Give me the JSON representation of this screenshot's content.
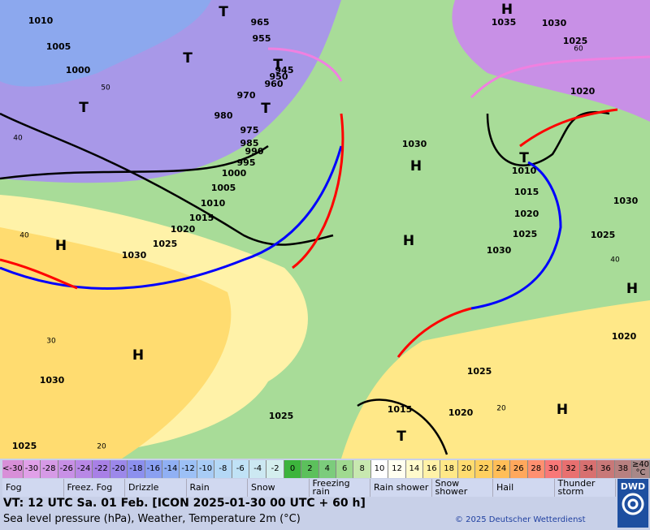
{
  "map": {
    "labels": [
      "1010",
      "1005",
      "1000",
      "965",
      "955",
      "945",
      "950",
      "960",
      "970",
      "980",
      "975",
      "985",
      "990",
      "995",
      "1000",
      "1005",
      "1010",
      "1015",
      "1020",
      "1025",
      "1030",
      "1030",
      "1035",
      "1030",
      "1025",
      "1020",
      "1010",
      "1015",
      "1020",
      "1025",
      "1030",
      "1025",
      "1030",
      "1020",
      "1025",
      "1020",
      "1015",
      "1025",
      "1030",
      "1025"
    ],
    "centers": [
      "H",
      "H",
      "H",
      "H",
      "H",
      "H",
      "H",
      "T",
      "T",
      "T",
      "T",
      "T",
      "T",
      "T"
    ],
    "temperatures": [
      "40",
      "50",
      "40",
      "30",
      "20",
      "60",
      "40",
      "20"
    ]
  },
  "scale": [
    {
      "label": "<-30",
      "color": "#d88fd8"
    },
    {
      "label": "-30",
      "color": "#e0a0e8"
    },
    {
      "label": "-28",
      "color": "#d69ae6"
    },
    {
      "label": "-26",
      "color": "#c890e6"
    },
    {
      "label": "-24",
      "color": "#b888e6"
    },
    {
      "label": "-22",
      "color": "#a880e6"
    },
    {
      "label": "-20",
      "color": "#9c88ea"
    },
    {
      "label": "-18",
      "color": "#8c90ee"
    },
    {
      "label": "-16",
      "color": "#8aa0f2"
    },
    {
      "label": "-14",
      "color": "#90b0f4"
    },
    {
      "label": "-12",
      "color": "#9cc0f6"
    },
    {
      "label": "-10",
      "color": "#a8ccf6"
    },
    {
      "label": "-8",
      "color": "#b4d8f6"
    },
    {
      "label": "-6",
      "color": "#c0e2f6"
    },
    {
      "label": "-4",
      "color": "#cce8f2"
    },
    {
      "label": "-2",
      "color": "#d4eeee"
    },
    {
      "label": "0",
      "color": "#3cb43c"
    },
    {
      "label": "2",
      "color": "#5cc05c"
    },
    {
      "label": "4",
      "color": "#7ccc7c"
    },
    {
      "label": "6",
      "color": "#a0da90"
    },
    {
      "label": "8",
      "color": "#c8e8b0"
    },
    {
      "label": "10",
      "color": "#ffffff"
    },
    {
      "label": "12",
      "color": "#fffff0"
    },
    {
      "label": "14",
      "color": "#fffacc"
    },
    {
      "label": "16",
      "color": "#fff2a8"
    },
    {
      "label": "18",
      "color": "#ffe888"
    },
    {
      "label": "20",
      "color": "#ffdc70"
    },
    {
      "label": "22",
      "color": "#ffd060"
    },
    {
      "label": "24",
      "color": "#ffbe58"
    },
    {
      "label": "26",
      "color": "#ffa85c"
    },
    {
      "label": "28",
      "color": "#ff9070"
    },
    {
      "label": "30",
      "color": "#f87878"
    },
    {
      "label": "32",
      "color": "#e87070"
    },
    {
      "label": "34",
      "color": "#d87070"
    },
    {
      "label": "36",
      "color": "#c87878"
    },
    {
      "label": "38",
      "color": "#b88080"
    },
    {
      "label": "≥40 °C",
      "color": "#a88888"
    }
  ],
  "legend": [
    "Fog",
    "Freez. Fog",
    "Drizzle",
    "Rain",
    "Snow",
    "Freezing rain",
    "Rain shower",
    "Snow shower",
    "Hail",
    "Thunder storm"
  ],
  "footer": {
    "valid_time": "VT: 12 UTC Sa.  01 Feb. [ICON 2025-01-30  00 UTC + 60 h]",
    "description": "Sea level pressure (hPa), Weather, Temperature 2m (°C)",
    "copyright": "© 2025 Deutscher Wetterdienst",
    "logo": "DWD"
  }
}
